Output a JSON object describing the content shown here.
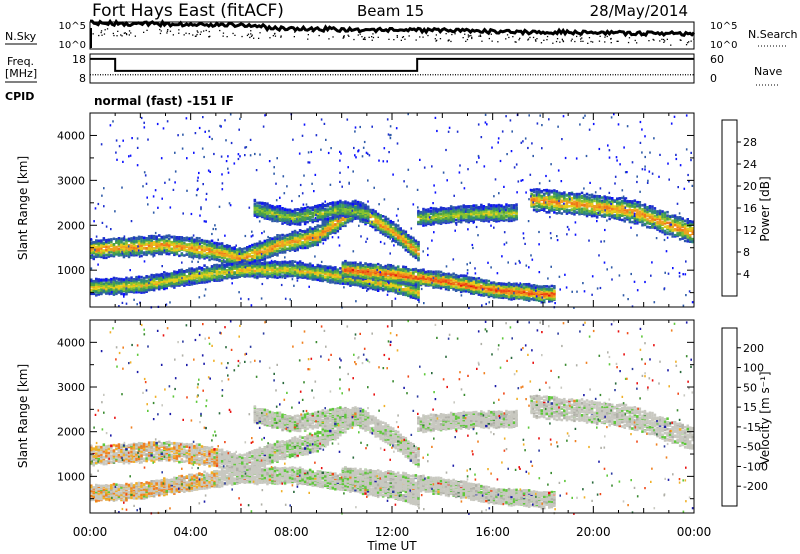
{
  "header": {
    "station": "Fort Hays East (fitACF)",
    "beam": "Beam 15",
    "date": "28/May/2014"
  },
  "noise_panel": {
    "left_label": "N.Sky",
    "right_label": "N.Search",
    "ticks_left": [
      "10^5",
      "10^0"
    ],
    "ticks_right": [
      "10^5",
      "10^0"
    ]
  },
  "freq_panel": {
    "left_label_line1": "Freq.",
    "left_label_line2": "[MHz]",
    "right_label": "Nave",
    "ticks_left": [
      "18",
      "8"
    ],
    "ticks_right": [
      "60",
      "0"
    ]
  },
  "cpid": {
    "label": "CPID",
    "text": "normal (fast) -151 IF"
  },
  "colors": {
    "power_scale": [
      "#0b10ff",
      "#1c2ecf",
      "#2e5aa8",
      "#2e8c74",
      "#4aa048",
      "#86c430",
      "#e6cc1a",
      "#f0a020",
      "#f07818",
      "#f04814",
      "#e8140e"
    ],
    "velocity_scale": [
      "#1a1aa8",
      "#2a3aa0",
      "#2a6a3c",
      "#3a8a30",
      "#5ec83a",
      "#c8c8c0",
      "#b0b0a8",
      "#f0b028",
      "#f08020",
      "#f04818",
      "#e81010"
    ]
  },
  "chart_data": [
    {
      "type": "heatmap",
      "title": "",
      "xlabel": "",
      "ylabel": "Slant Range [km]",
      "xlim": [
        "00:00",
        "24:00"
      ],
      "ylim": [
        180,
        4500
      ],
      "y_ticks": [
        "1000",
        "2000",
        "3000",
        "4000"
      ],
      "colorbar": {
        "label": "Power [dB]",
        "ticks": [
          "4",
          "8",
          "12",
          "16",
          "20",
          "24",
          "28"
        ],
        "range": [
          0,
          30
        ]
      },
      "echo_bands": [
        {
          "x": [
            0.0,
            1.5,
            3.0,
            4.5,
            6.0,
            7.5,
            9.0,
            10.5,
            12.0,
            13.0
          ],
          "y": [
            1500,
            1550,
            1600,
            1500,
            1300,
            1600,
            1800,
            2400,
            1900,
            1450
          ],
          "width_km": 300,
          "peak_db": 24
        },
        {
          "x": [
            0.0,
            2.0,
            4.0,
            6.0,
            8.0,
            10.0,
            12.0,
            13.0
          ],
          "y": [
            650,
            700,
            900,
            1050,
            1050,
            900,
            700,
            550
          ],
          "width_km": 250,
          "peak_db": 20
        },
        {
          "x": [
            10.0,
            12.0,
            14.0,
            16.0,
            18.0,
            18.5
          ],
          "y": [
            1050,
            950,
            800,
            600,
            500,
            500
          ],
          "width_km": 250,
          "peak_db": 28
        },
        {
          "x": [
            13.0,
            14.0,
            15.5,
            17.0
          ],
          "y": [
            2200,
            2250,
            2300,
            2300
          ],
          "width_km": 250,
          "peak_db": 18
        },
        {
          "x": [
            17.5,
            19.5,
            21.5,
            23.0,
            24.0
          ],
          "y": [
            2600,
            2500,
            2350,
            2050,
            1850
          ],
          "width_km": 350,
          "peak_db": 24
        },
        {
          "x": [
            6.5,
            8.0,
            10.0,
            11.0
          ],
          "y": [
            2400,
            2200,
            2400,
            2300
          ],
          "width_km": 250,
          "peak_db": 16
        }
      ]
    },
    {
      "type": "heatmap",
      "title": "",
      "xlabel": "Time UT",
      "ylabel": "Slant Range [km]",
      "xlim": [
        "00:00",
        "24:00"
      ],
      "ylim": [
        180,
        4500
      ],
      "x_ticks": [
        "00:00",
        "04:00",
        "08:00",
        "12:00",
        "16:00",
        "20:00",
        "00:00"
      ],
      "y_ticks": [
        "1000",
        "2000",
        "3000",
        "4000"
      ],
      "colorbar": {
        "label": "Velocity [m s⁻¹]",
        "ticks": [
          "200",
          "100",
          "50",
          "15",
          "-15",
          "-50",
          "-100",
          "-200"
        ],
        "range": [
          -250,
          250
        ]
      }
    }
  ]
}
